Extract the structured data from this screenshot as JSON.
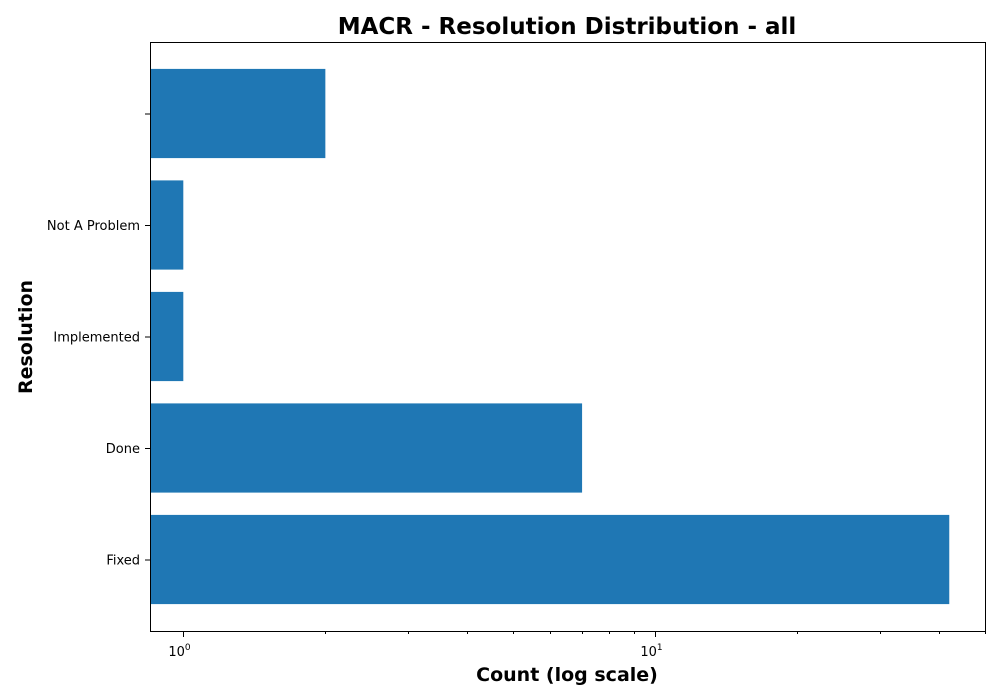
{
  "chart_data": {
    "type": "bar",
    "orientation": "horizontal",
    "title": "MACR - Resolution Distribution - all",
    "xlabel": "Count (log scale)",
    "ylabel": "Resolution",
    "x_scale": "log",
    "xlim": [
      0.85,
      50
    ],
    "categories": [
      "Fixed",
      "Done",
      "Implemented",
      "Not A Problem",
      ""
    ],
    "values": [
      42,
      7,
      1,
      1,
      2
    ],
    "x_major_ticks": [
      {
        "value": 1,
        "base": "10",
        "exp": "0"
      },
      {
        "value": 10,
        "base": "10",
        "exp": "1"
      }
    ],
    "x_minor_ticks": [
      2,
      3,
      4,
      5,
      6,
      7,
      8,
      9,
      20,
      30,
      40,
      50
    ],
    "bar_color": "#1f77b4",
    "grid": false,
    "legend": "none"
  }
}
